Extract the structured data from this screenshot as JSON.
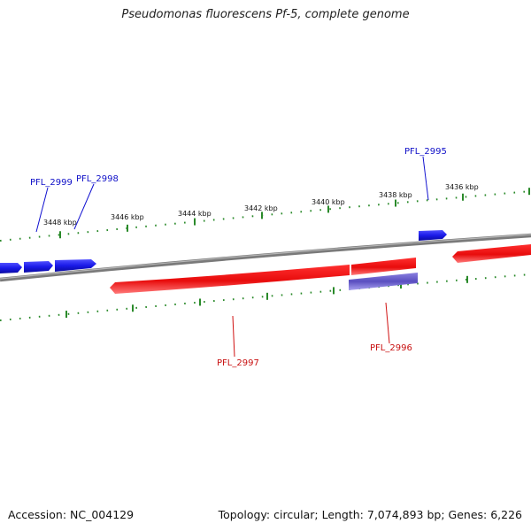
{
  "title": "Pseudomonas fluorescens Pf-5, complete genome",
  "footer": {
    "accession": "Accession: NC_004129",
    "summary": "Topology: circular; Length: 7,074,893 bp; Genes: 6,226"
  },
  "kbp_labels": [
    "3448 kbp",
    "3446 kbp",
    "3444 kbp",
    "3442 kbp",
    "3440 kbp",
    "3438 kbp",
    "3436 kbp"
  ],
  "gene_labels": {
    "forward": [
      "PFL_2999",
      "PFL_2998",
      "PFL_2995"
    ],
    "reverse": [
      "PFL_2997",
      "PFL_2996"
    ]
  },
  "colors": {
    "forward_gene": "#1010e0",
    "reverse_gene": "#e01010",
    "rna_feature": "#6a5acd",
    "backbone": "#888888",
    "tick": "#2a8a2a"
  }
}
